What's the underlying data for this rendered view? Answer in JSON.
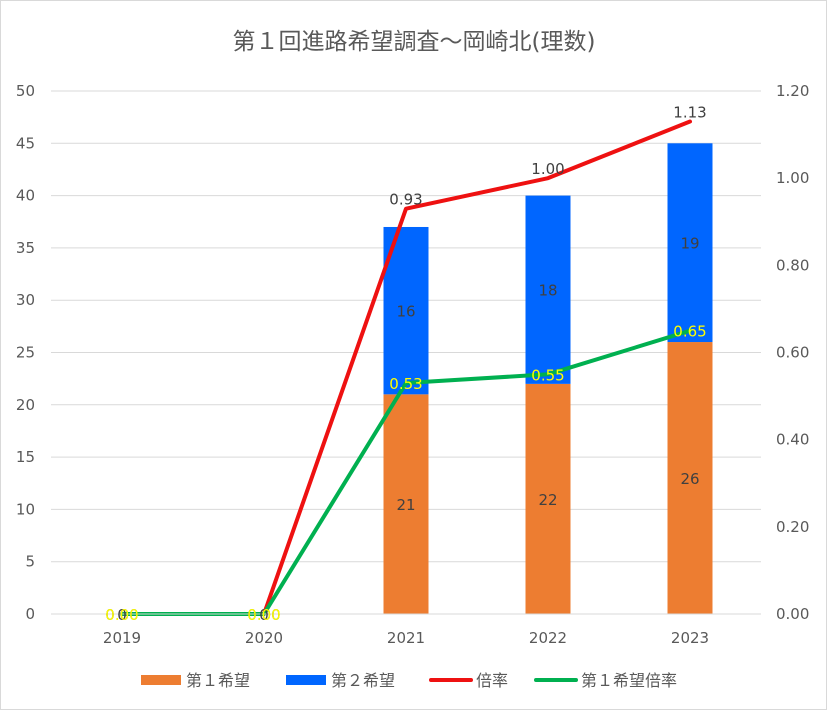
{
  "chart_data": {
    "type": "bar",
    "title": "第１回進路希望調査～岡崎北(理数)",
    "categories": [
      "2019",
      "2020",
      "2021",
      "2022",
      "2023"
    ],
    "y_left": {
      "ticks": [
        "0",
        "5",
        "10",
        "15",
        "20",
        "25",
        "30",
        "35",
        "40",
        "45",
        "50"
      ],
      "lim": [
        0,
        50
      ]
    },
    "y_right": {
      "ticks": [
        "0.00",
        "0.20",
        "0.40",
        "0.60",
        "0.80",
        "1.00",
        "1.20"
      ],
      "lim": [
        0,
        1.2
      ]
    },
    "bar_series": [
      {
        "name": "第１希望",
        "color": "#ed7d31",
        "values": [
          0,
          0,
          21,
          22,
          26
        ],
        "labels": [
          "0",
          "0",
          "21",
          "22",
          "26"
        ]
      },
      {
        "name": "第２希望",
        "color": "#0066ff",
        "values": [
          0,
          0,
          16,
          18,
          19
        ],
        "labels": [
          "",
          "",
          "16",
          "18",
          "19"
        ]
      }
    ],
    "line_series": [
      {
        "name": "倍率",
        "color": "#ee1111",
        "values": [
          0,
          0,
          0.93,
          1.0,
          1.13
        ],
        "labels": [
          "0.00",
          "0.00",
          "0.93",
          "1.00",
          "1.13"
        ],
        "label_color": "#404040"
      },
      {
        "name": "第１希望倍率",
        "color": "#00b050",
        "values": [
          0,
          0,
          0.53,
          0.55,
          0.65
        ],
        "labels": [
          "0.00",
          "0.00",
          "0.53",
          "0.55",
          "0.65"
        ],
        "label_color": "#ffff00"
      }
    ],
    "legend": [
      "第１希望",
      "第２希望",
      "倍率",
      "第１希望倍率"
    ],
    "legend_position": "bottom",
    "grid": true
  }
}
